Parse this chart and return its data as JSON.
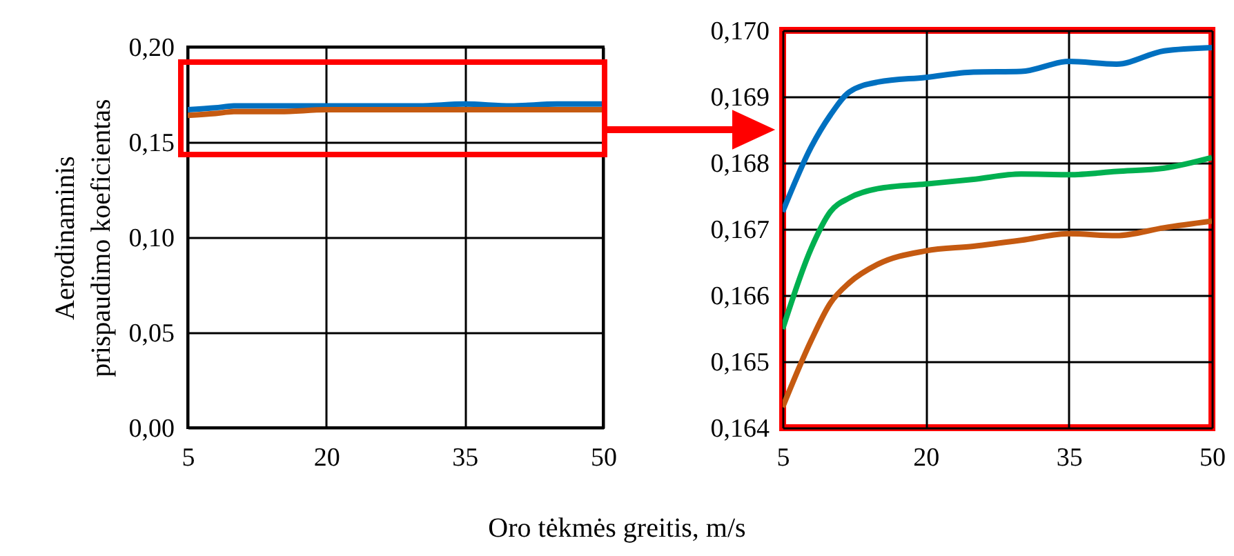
{
  "chart_data": [
    {
      "type": "line",
      "ylabel": "Aerodinaminis prispaudimo koeficientas",
      "xlabel": "Oro tėkmės greitis, m/s",
      "x": [
        5,
        8,
        10,
        12,
        15,
        20,
        25,
        30,
        35,
        40,
        45,
        50
      ],
      "series": [
        {
          "color": "#0070c0",
          "values": [
            0.167,
            0.168,
            0.169,
            0.169,
            0.169,
            0.169,
            0.169,
            0.169,
            0.17,
            0.169,
            0.17,
            0.17
          ]
        },
        {
          "color": "#c55a11",
          "values": [
            0.164,
            0.165,
            0.166,
            0.166,
            0.166,
            0.167,
            0.167,
            0.167,
            0.167,
            0.167,
            0.167,
            0.167
          ]
        }
      ],
      "xlim": [
        5,
        50
      ],
      "xticks": [
        5,
        20,
        35,
        50
      ],
      "ylim": [
        0,
        0.2
      ],
      "yticks": [
        {
          "value": 0,
          "label": "0,00"
        },
        {
          "value": 0.05,
          "label": "0,05"
        },
        {
          "value": 0.1,
          "label": "0,10"
        },
        {
          "value": 0.15,
          "label": "0,15"
        },
        {
          "value": 0.2,
          "label": "0,20"
        }
      ],
      "grid": true
    },
    {
      "type": "line",
      "x": [
        5,
        8,
        10,
        12,
        15,
        20,
        25,
        30,
        35,
        40,
        45,
        50
      ],
      "series": [
        {
          "color": "#0070c0",
          "values": [
            0.16726,
            0.16824,
            0.16872,
            0.16907,
            0.16922,
            0.16929,
            0.16937,
            0.16938,
            0.16953,
            0.16949,
            0.16969,
            0.16974
          ]
        },
        {
          "color": "#00b050",
          "values": [
            0.16549,
            0.16671,
            0.16726,
            0.16747,
            0.16761,
            0.16768,
            0.16775,
            0.16783,
            0.16782,
            0.16787,
            0.16792,
            0.16808
          ]
        },
        {
          "color": "#c55a11",
          "values": [
            0.16431,
            0.16532,
            0.16588,
            0.16619,
            0.16647,
            0.16667,
            0.16674,
            0.16683,
            0.16693,
            0.1669,
            0.16702,
            0.16712
          ]
        }
      ],
      "xlim": [
        5,
        50
      ],
      "xticks": [
        5,
        20,
        35,
        50
      ],
      "ylim": [
        0.164,
        0.17
      ],
      "yticks": [
        {
          "value": 0.164,
          "label": "0,164"
        },
        {
          "value": 0.165,
          "label": "0,165"
        },
        {
          "value": 0.166,
          "label": "0,166"
        },
        {
          "value": 0.167,
          "label": "0,167"
        },
        {
          "value": 0.168,
          "label": "0,168"
        },
        {
          "value": 0.169,
          "label": "0,169"
        },
        {
          "value": 0.17,
          "label": "0,170"
        }
      ],
      "grid": true
    }
  ]
}
